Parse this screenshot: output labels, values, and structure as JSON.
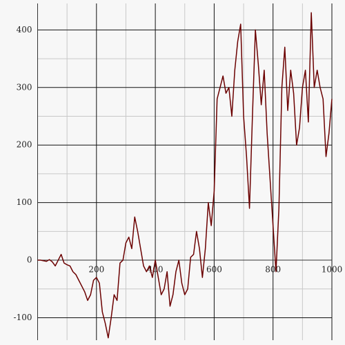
{
  "chart_data": {
    "type": "line",
    "x": [
      0,
      10,
      20,
      30,
      40,
      50,
      60,
      70,
      80,
      90,
      100,
      110,
      120,
      130,
      140,
      150,
      160,
      170,
      180,
      190,
      200,
      210,
      220,
      230,
      240,
      250,
      260,
      270,
      280,
      290,
      300,
      310,
      320,
      330,
      340,
      350,
      360,
      370,
      380,
      390,
      400,
      410,
      420,
      430,
      440,
      450,
      460,
      470,
      480,
      490,
      500,
      510,
      520,
      530,
      540,
      550,
      560,
      570,
      580,
      590,
      600,
      610,
      620,
      630,
      640,
      650,
      660,
      670,
      680,
      690,
      700,
      710,
      720,
      730,
      740,
      750,
      760,
      770,
      780,
      790,
      800,
      810,
      820,
      830,
      840,
      850,
      860,
      870,
      880,
      890,
      900,
      910,
      920,
      930,
      940,
      950,
      960,
      970,
      980,
      990,
      1000
    ],
    "series": [
      {
        "color": "#6b0000",
        "values": [
          0,
          0,
          -1,
          -2,
          1,
          -3,
          -10,
          0,
          10,
          -5,
          -8,
          -10,
          -20,
          -25,
          -35,
          -45,
          -55,
          -70,
          -60,
          -35,
          -30,
          -40,
          -90,
          -110,
          -135,
          -100,
          -60,
          -70,
          -5,
          0,
          30,
          40,
          20,
          75,
          50,
          20,
          -10,
          -20,
          -10,
          -30,
          0,
          -30,
          -60,
          -50,
          -20,
          -80,
          -60,
          -20,
          0,
          -40,
          -60,
          -50,
          5,
          10,
          50,
          20,
          -30,
          20,
          100,
          60,
          120,
          280,
          300,
          320,
          290,
          300,
          250,
          330,
          380,
          410,
          250,
          180,
          90,
          250,
          400,
          340,
          270,
          330,
          220,
          140,
          60,
          -20,
          90,
          300,
          370,
          260,
          330,
          290,
          200,
          230,
          300,
          330,
          240,
          430,
          300,
          330,
          300,
          280,
          180,
          220,
          280
        ]
      }
    ],
    "xlim": [
      0,
      1000
    ],
    "ylim": [
      -139,
      446
    ],
    "xticks": [
      200,
      400,
      600,
      800,
      1000
    ],
    "yticks": [
      -100,
      0,
      100,
      200,
      300,
      400
    ],
    "x_minor_ticks": [
      100,
      300,
      500,
      700,
      900
    ],
    "y_minor_ticks": [
      -50,
      50,
      150,
      250,
      350
    ],
    "grid": true
  }
}
